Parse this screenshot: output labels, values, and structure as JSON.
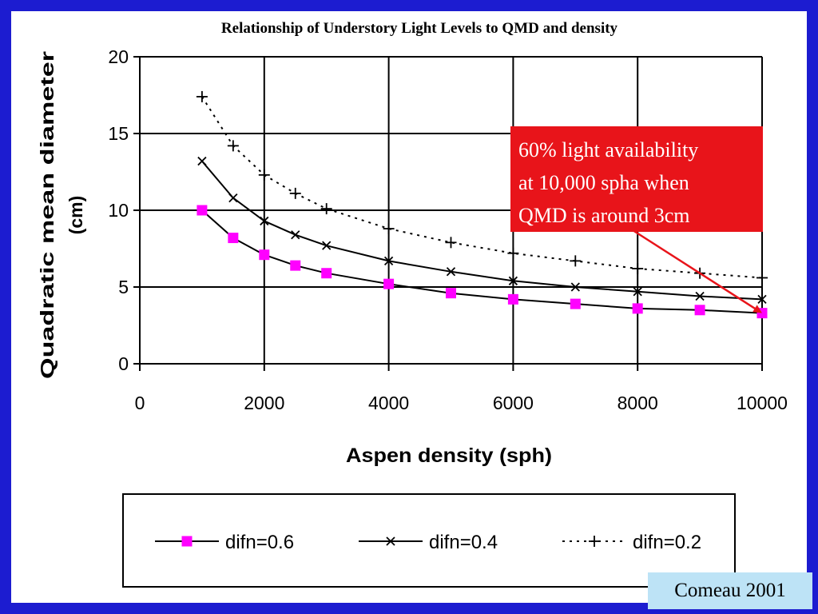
{
  "chart_data": {
    "type": "line",
    "title": "Relationship of Understory Light Levels to  QMD and density",
    "xlabel": "Aspen density (sph)",
    "ylabel_lines": [
      "Quadratic mean diameter",
      "(cm)"
    ],
    "xlim": [
      0,
      10000
    ],
    "ylim": [
      0,
      20
    ],
    "xticks": [
      "0",
      "2000",
      "4000",
      "6000",
      "8000",
      "10000"
    ],
    "yticks": [
      "0",
      "5",
      "10",
      "15",
      "20"
    ],
    "grid": true,
    "legend_position": "bottom",
    "series": [
      {
        "name": "difn=0.6",
        "marker": "square",
        "line": "solid",
        "color": "#ff00ff",
        "x": [
          1000,
          1500,
          2000,
          2500,
          3000,
          4000,
          5000,
          6000,
          7000,
          8000,
          9000,
          10000
        ],
        "y": [
          10.0,
          8.2,
          7.1,
          6.4,
          5.9,
          5.2,
          4.6,
          4.2,
          3.9,
          3.6,
          3.5,
          3.3
        ]
      },
      {
        "name": "difn=0.4",
        "marker": "x",
        "line": "solid",
        "color": "#000000",
        "x": [
          1000,
          1500,
          2000,
          2500,
          3000,
          4000,
          5000,
          6000,
          7000,
          8000,
          9000,
          10000
        ],
        "y": [
          13.2,
          10.8,
          9.3,
          8.4,
          7.7,
          6.7,
          6.0,
          5.4,
          5.0,
          4.7,
          4.4,
          4.2
        ]
      },
      {
        "name": "difn=0.2",
        "marker": "plus",
        "line": "dotted",
        "color": "#000000",
        "x": [
          1000,
          1500,
          2000,
          2500,
          3000,
          4000,
          5000,
          6000,
          7000,
          8000,
          9000,
          10000
        ],
        "y": [
          17.4,
          14.2,
          12.3,
          11.1,
          10.1,
          8.8,
          7.9,
          7.2,
          6.7,
          6.2,
          5.9,
          5.6
        ]
      }
    ],
    "annotation": {
      "lines": [
        "60% light availability",
        "at 10,000 spha when",
        "QMD is around 3cm"
      ],
      "point_x": 10000,
      "point_y": 3.3,
      "box_color": "#e8141a",
      "arrow_color": "#e8141a"
    }
  },
  "credit": "Comeau 2001",
  "colors": {
    "frame": "#1c1cd0",
    "credit_bg": "#bde3f6",
    "annotation_bg": "#e8141a"
  }
}
